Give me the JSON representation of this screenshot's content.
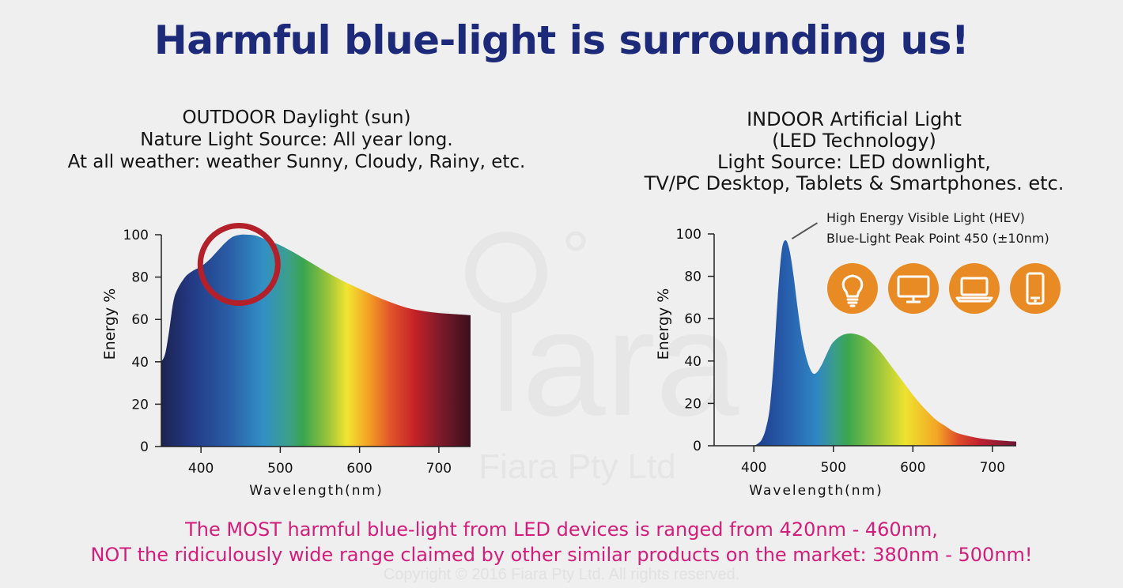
{
  "title": "Harmful blue-light is surrounding us!",
  "left_header": [
    "OUTDOOR Daylight (sun)",
    "Nature Light Source: All year long.",
    "At all weather: weather Sunny, Cloudy, Rainy, etc."
  ],
  "right_header": [
    "INDOOR Artificial Light",
    "(LED Technology)",
    "Light Source: LED downlight,",
    "TV/PC Desktop, Tablets & Smartphones. etc."
  ],
  "hev_annotation": [
    "High Energy Visible Light (HEV)",
    "Blue-Light Peak Point 450 (±10nm)"
  ],
  "device_icons": [
    "light-bulb-icon",
    "desktop-monitor-icon",
    "laptop-icon",
    "smartphone-icon"
  ],
  "icon_color": "#e88b24",
  "highlight_color": "#b3202a",
  "watermark": {
    "logo": "Fiara",
    "text": "Fiara Pty Ltd"
  },
  "footer": [
    "The MOST harmful blue-light from LED devices is ranged from 420nm - 460nm,",
    "NOT the ridiculously wide range claimed by other similar products on the market: 380nm - 500nm!"
  ],
  "copyright": "Copyright © 2016 Fiara Pty Ltd. All rights reserved.",
  "chart_data": [
    {
      "type": "area",
      "name": "outdoor",
      "xlabel": "Wavelength(nm)",
      "ylabel": "Energy %",
      "xlim": [
        350,
        740
      ],
      "ylim": [
        0,
        100
      ],
      "xticks": [
        400,
        500,
        600,
        700
      ],
      "yticks": [
        0,
        20,
        40,
        60,
        80,
        100
      ],
      "x": [
        350,
        355,
        360,
        365,
        370,
        380,
        390,
        400,
        410,
        420,
        430,
        440,
        450,
        460,
        470,
        480,
        490,
        500,
        520,
        540,
        560,
        580,
        600,
        620,
        640,
        660,
        680,
        700,
        720,
        740
      ],
      "y": [
        40,
        44,
        55,
        68,
        74,
        80,
        83,
        85,
        88,
        92,
        96,
        99,
        100,
        100,
        99.5,
        98,
        96.5,
        95,
        91,
        86.5,
        82,
        78,
        74.5,
        71,
        68,
        65.5,
        64,
        63,
        62.5,
        62
      ],
      "highlight": {
        "center_x": 460,
        "center_y": 86
      }
    },
    {
      "type": "area",
      "name": "indoor",
      "xlabel": "Wavelength(nm)",
      "ylabel": "Energy %",
      "xlim": [
        350,
        730
      ],
      "ylim": [
        0,
        100
      ],
      "xticks": [
        400,
        500,
        600,
        700
      ],
      "yticks": [
        0,
        20,
        40,
        60,
        80,
        100
      ],
      "x": [
        400,
        405,
        410,
        415,
        420,
        425,
        430,
        435,
        440,
        445,
        450,
        455,
        460,
        465,
        470,
        475,
        480,
        485,
        490,
        495,
        500,
        510,
        520,
        530,
        540,
        550,
        560,
        570,
        580,
        590,
        600,
        610,
        620,
        630,
        640,
        650,
        660,
        680,
        700,
        720,
        730
      ],
      "y": [
        0,
        1,
        3,
        8,
        18,
        40,
        70,
        92,
        97,
        92,
        80,
        65,
        52,
        43,
        37,
        34,
        35,
        38,
        42,
        46,
        49,
        52,
        53,
        52.5,
        51,
        48,
        44,
        39,
        34,
        29,
        24,
        19.5,
        15.5,
        12,
        9.5,
        7,
        5.5,
        3.8,
        2.8,
        2.2,
        2
      ]
    }
  ]
}
